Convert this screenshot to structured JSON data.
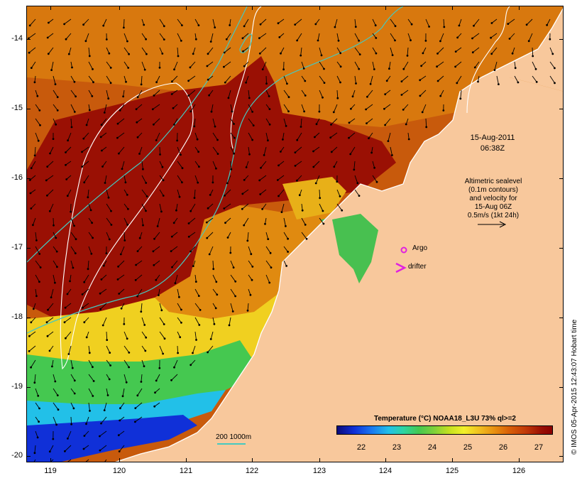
{
  "map": {
    "lat_ticks": [
      "-14",
      "-15",
      "-16",
      "-17",
      "-18",
      "-19",
      "-20"
    ],
    "lon_ticks": [
      "119",
      "120",
      "121",
      "122",
      "123",
      "124",
      "125",
      "126"
    ],
    "annotation_date": "15-Aug-2011",
    "annotation_time": "06:38Z",
    "sealevel_lines": [
      "Altimetric sealevel",
      "(0.1m contours)",
      "and velocity for",
      "15-Aug 06Z",
      "0.5m/s (1kt 24h)"
    ],
    "legend": {
      "argo": "Argo",
      "drifter": "drifter",
      "argo_color": "#e020e0",
      "drifter_color": "#e020e0"
    },
    "colorbar": {
      "title": "Temperature (°C) NOAA18_L3U 73% ql>=2",
      "ticks": [
        "22",
        "23",
        "24",
        "25",
        "26",
        "27"
      ],
      "range": [
        21.3,
        27.4
      ]
    },
    "scale": {
      "label": "200  1000m",
      "contour_color": "#45c9c0"
    },
    "credit": "© IMOS 05-Apr-2015 12:43:07 Hobart time",
    "colors": {
      "land": "#f8c89c",
      "warm": "#9a1004",
      "hot": "#c03808",
      "orange": "#d86008",
      "yellow": "#f0d020",
      "green": "#45c850",
      "cyan": "#22c0e8",
      "blue": "#1030d8"
    }
  }
}
